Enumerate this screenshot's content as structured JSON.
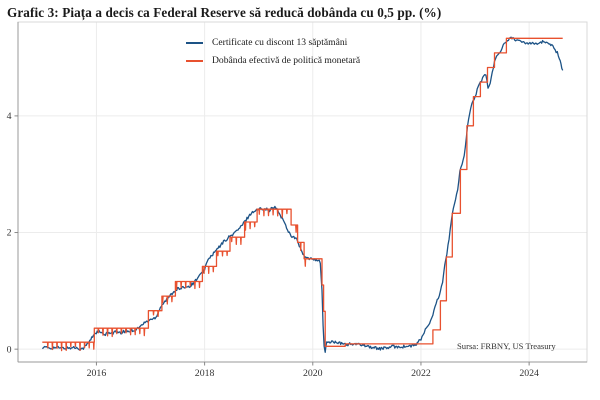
{
  "title": "Grafic 3: Piața a decis ca Federal Reserve să reducă dobânda cu 0,5 pp. (%)",
  "source_note": "Sursa: FRBNY, US Treasury",
  "colors": {
    "bills_line": "#1d5386",
    "policy_line": "#e8512f",
    "grid": "#ececec",
    "box_border": "#d9d9d9",
    "spine": "#999999",
    "tick": "#888888",
    "tick_label": "#333333"
  },
  "legend": {
    "items": [
      {
        "label": "Certificate cu discont 13 săptămâni",
        "color": "#1d5386"
      },
      {
        "label": "Dobânda efectivă de politică monetară",
        "color": "#e8512f"
      }
    ]
  },
  "chart_data": {
    "type": "line",
    "title": "Grafic 3: Piața a decis ca Federal Reserve să reducă dobânda cu 0,5 pp. (%)",
    "xlabel": "",
    "ylabel": "",
    "xlim": [
      2014.55,
      2025.07
    ],
    "ylim": [
      -0.22,
      5.61
    ],
    "xticks": [
      2016,
      2018,
      2020,
      2022,
      2024
    ],
    "yticks": [
      0,
      2,
      4
    ],
    "grid": true,
    "legend_position": "upper-left-inside",
    "series": [
      {
        "name": "Certificate cu discont 13 săptămâni",
        "color": "#1d5386",
        "style": "line",
        "jitter": 0.025,
        "points": [
          [
            2015.0,
            0.035
          ],
          [
            2015.08,
            0.025
          ],
          [
            2015.17,
            0.02
          ],
          [
            2015.25,
            0.03
          ],
          [
            2015.33,
            0.02
          ],
          [
            2015.42,
            0.015
          ],
          [
            2015.5,
            0.02
          ],
          [
            2015.58,
            0.03
          ],
          [
            2015.67,
            0.015
          ],
          [
            2015.72,
            0.005
          ],
          [
            2015.78,
            0.03
          ],
          [
            2015.83,
            0.09
          ],
          [
            2015.88,
            0.14
          ],
          [
            2015.93,
            0.22
          ],
          [
            2015.98,
            0.28
          ],
          [
            2016.05,
            0.3
          ],
          [
            2016.1,
            0.27
          ],
          [
            2016.15,
            0.24
          ],
          [
            2016.2,
            0.27
          ],
          [
            2016.25,
            0.29
          ],
          [
            2016.3,
            0.27
          ],
          [
            2016.35,
            0.3
          ],
          [
            2016.4,
            0.28
          ],
          [
            2016.45,
            0.27
          ],
          [
            2016.5,
            0.3
          ],
          [
            2016.55,
            0.32
          ],
          [
            2016.6,
            0.3
          ],
          [
            2016.65,
            0.33
          ],
          [
            2016.7,
            0.32
          ],
          [
            2016.75,
            0.35
          ],
          [
            2016.8,
            0.38
          ],
          [
            2016.85,
            0.42
          ],
          [
            2016.9,
            0.46
          ],
          [
            2016.95,
            0.48
          ],
          [
            2017.0,
            0.51
          ],
          [
            2017.05,
            0.52
          ],
          [
            2017.1,
            0.55
          ],
          [
            2017.15,
            0.65
          ],
          [
            2017.2,
            0.75
          ],
          [
            2017.25,
            0.8
          ],
          [
            2017.3,
            0.85
          ],
          [
            2017.35,
            0.9
          ],
          [
            2017.4,
            0.96
          ],
          [
            2017.45,
            1.0
          ],
          [
            2017.5,
            1.04
          ],
          [
            2017.55,
            1.03
          ],
          [
            2017.6,
            1.05
          ],
          [
            2017.65,
            1.08
          ],
          [
            2017.7,
            1.07
          ],
          [
            2017.75,
            1.1
          ],
          [
            2017.8,
            1.14
          ],
          [
            2017.85,
            1.2
          ],
          [
            2017.9,
            1.25
          ],
          [
            2017.95,
            1.3
          ],
          [
            2018.0,
            1.38
          ],
          [
            2018.05,
            1.5
          ],
          [
            2018.1,
            1.58
          ],
          [
            2018.15,
            1.62
          ],
          [
            2018.2,
            1.68
          ],
          [
            2018.25,
            1.73
          ],
          [
            2018.3,
            1.78
          ],
          [
            2018.35,
            1.84
          ],
          [
            2018.4,
            1.88
          ],
          [
            2018.45,
            1.92
          ],
          [
            2018.5,
            1.95
          ],
          [
            2018.55,
            2.0
          ],
          [
            2018.6,
            2.03
          ],
          [
            2018.65,
            2.08
          ],
          [
            2018.7,
            2.13
          ],
          [
            2018.75,
            2.2
          ],
          [
            2018.8,
            2.26
          ],
          [
            2018.85,
            2.32
          ],
          [
            2018.9,
            2.36
          ],
          [
            2018.95,
            2.38
          ],
          [
            2019.0,
            2.4
          ],
          [
            2019.05,
            2.41
          ],
          [
            2019.1,
            2.42
          ],
          [
            2019.15,
            2.4
          ],
          [
            2019.2,
            2.38
          ],
          [
            2019.25,
            2.42
          ],
          [
            2019.3,
            2.43
          ],
          [
            2019.35,
            2.38
          ],
          [
            2019.4,
            2.3
          ],
          [
            2019.45,
            2.22
          ],
          [
            2019.5,
            2.12
          ],
          [
            2019.55,
            2.02
          ],
          [
            2019.6,
            1.95
          ],
          [
            2019.65,
            1.92
          ],
          [
            2019.7,
            1.88
          ],
          [
            2019.75,
            1.78
          ],
          [
            2019.8,
            1.65
          ],
          [
            2019.85,
            1.58
          ],
          [
            2019.9,
            1.56
          ],
          [
            2019.95,
            1.54
          ],
          [
            2020.0,
            1.55
          ],
          [
            2020.05,
            1.54
          ],
          [
            2020.1,
            1.52
          ],
          [
            2020.14,
            1.48
          ],
          [
            2020.17,
            1.0
          ],
          [
            2020.19,
            0.4
          ],
          [
            2020.21,
            0.05
          ],
          [
            2020.23,
            -0.06
          ],
          [
            2020.26,
            0.14
          ],
          [
            2020.3,
            0.11
          ],
          [
            2020.35,
            0.13
          ],
          [
            2020.4,
            0.12
          ],
          [
            2020.45,
            0.11
          ],
          [
            2020.5,
            0.1
          ],
          [
            2020.55,
            0.09
          ],
          [
            2020.6,
            0.09
          ],
          [
            2020.65,
            0.08
          ],
          [
            2020.7,
            0.09
          ],
          [
            2020.75,
            0.08
          ],
          [
            2020.8,
            0.08
          ],
          [
            2020.85,
            0.08
          ],
          [
            2020.9,
            0.08
          ],
          [
            2020.95,
            0.07
          ],
          [
            2021.0,
            0.06
          ],
          [
            2021.05,
            0.04
          ],
          [
            2021.1,
            0.03
          ],
          [
            2021.15,
            0.02
          ],
          [
            2021.2,
            0.015
          ],
          [
            2021.25,
            0.01
          ],
          [
            2021.3,
            0.015
          ],
          [
            2021.35,
            0.02
          ],
          [
            2021.4,
            0.025
          ],
          [
            2021.45,
            0.04
          ],
          [
            2021.5,
            0.045
          ],
          [
            2021.55,
            0.04
          ],
          [
            2021.6,
            0.045
          ],
          [
            2021.65,
            0.04
          ],
          [
            2021.7,
            0.045
          ],
          [
            2021.75,
            0.05
          ],
          [
            2021.8,
            0.05
          ],
          [
            2021.85,
            0.06
          ],
          [
            2021.9,
            0.07
          ],
          [
            2021.95,
            0.12
          ],
          [
            2022.0,
            0.17
          ],
          [
            2022.04,
            0.25
          ],
          [
            2022.08,
            0.33
          ],
          [
            2022.12,
            0.38
          ],
          [
            2022.16,
            0.45
          ],
          [
            2022.2,
            0.52
          ],
          [
            2022.24,
            0.65
          ],
          [
            2022.28,
            0.78
          ],
          [
            2022.32,
            0.88
          ],
          [
            2022.36,
            1.0
          ],
          [
            2022.4,
            1.12
          ],
          [
            2022.44,
            1.45
          ],
          [
            2022.48,
            1.65
          ],
          [
            2022.52,
            1.9
          ],
          [
            2022.56,
            2.2
          ],
          [
            2022.6,
            2.42
          ],
          [
            2022.64,
            2.55
          ],
          [
            2022.68,
            2.75
          ],
          [
            2022.72,
            3.05
          ],
          [
            2022.76,
            3.15
          ],
          [
            2022.8,
            3.3
          ],
          [
            2022.84,
            3.65
          ],
          [
            2022.88,
            3.95
          ],
          [
            2022.92,
            4.15
          ],
          [
            2022.96,
            4.25
          ],
          [
            2023.0,
            4.32
          ],
          [
            2023.04,
            4.45
          ],
          [
            2023.08,
            4.55
          ],
          [
            2023.12,
            4.6
          ],
          [
            2023.16,
            4.68
          ],
          [
            2023.2,
            4.72
          ],
          [
            2023.24,
            4.48
          ],
          [
            2023.28,
            4.55
          ],
          [
            2023.32,
            4.75
          ],
          [
            2023.36,
            4.92
          ],
          [
            2023.4,
            5.02
          ],
          [
            2023.44,
            5.08
          ],
          [
            2023.48,
            5.14
          ],
          [
            2023.52,
            5.2
          ],
          [
            2023.56,
            5.25
          ],
          [
            2023.6,
            5.3
          ],
          [
            2023.65,
            5.33
          ],
          [
            2023.7,
            5.34
          ],
          [
            2023.75,
            5.31
          ],
          [
            2023.8,
            5.28
          ],
          [
            2023.85,
            5.27
          ],
          [
            2023.9,
            5.26
          ],
          [
            2023.95,
            5.25
          ],
          [
            2024.0,
            5.25
          ],
          [
            2024.05,
            5.26
          ],
          [
            2024.1,
            5.25
          ],
          [
            2024.15,
            5.24
          ],
          [
            2024.2,
            5.25
          ],
          [
            2024.25,
            5.27
          ],
          [
            2024.3,
            5.26
          ],
          [
            2024.35,
            5.25
          ],
          [
            2024.4,
            5.23
          ],
          [
            2024.44,
            5.2
          ],
          [
            2024.48,
            5.14
          ],
          [
            2024.52,
            5.08
          ],
          [
            2024.56,
            4.98
          ],
          [
            2024.59,
            4.88
          ],
          [
            2024.62,
            4.78
          ]
        ]
      },
      {
        "name": "Dobânda efectivă de politică monetară",
        "color": "#e8512f",
        "style": "step",
        "end": 2024.62,
        "month_end_dips": {
          "from": 2015.05,
          "to": 2019.9,
          "interval": 0.085,
          "depth": 0.11
        },
        "points": [
          [
            2015.0,
            0.12
          ],
          [
            2015.96,
            0.36
          ],
          [
            2016.96,
            0.66
          ],
          [
            2017.21,
            0.91
          ],
          [
            2017.46,
            1.16
          ],
          [
            2017.96,
            1.42
          ],
          [
            2018.22,
            1.68
          ],
          [
            2018.47,
            1.92
          ],
          [
            2018.74,
            2.18
          ],
          [
            2018.97,
            2.4
          ],
          [
            2019.6,
            2.13
          ],
          [
            2019.72,
            1.83
          ],
          [
            2019.84,
            1.55
          ],
          [
            2020.17,
            1.1
          ],
          [
            2020.2,
            0.65
          ],
          [
            2020.23,
            0.05
          ],
          [
            2020.6,
            0.09
          ],
          [
            2022.22,
            0.33
          ],
          [
            2022.36,
            0.83
          ],
          [
            2022.47,
            1.58
          ],
          [
            2022.58,
            2.33
          ],
          [
            2022.73,
            3.08
          ],
          [
            2022.85,
            3.83
          ],
          [
            2022.97,
            4.33
          ],
          [
            2023.1,
            4.58
          ],
          [
            2023.23,
            4.83
          ],
          [
            2023.36,
            5.08
          ],
          [
            2023.58,
            5.33
          ]
        ]
      }
    ]
  }
}
